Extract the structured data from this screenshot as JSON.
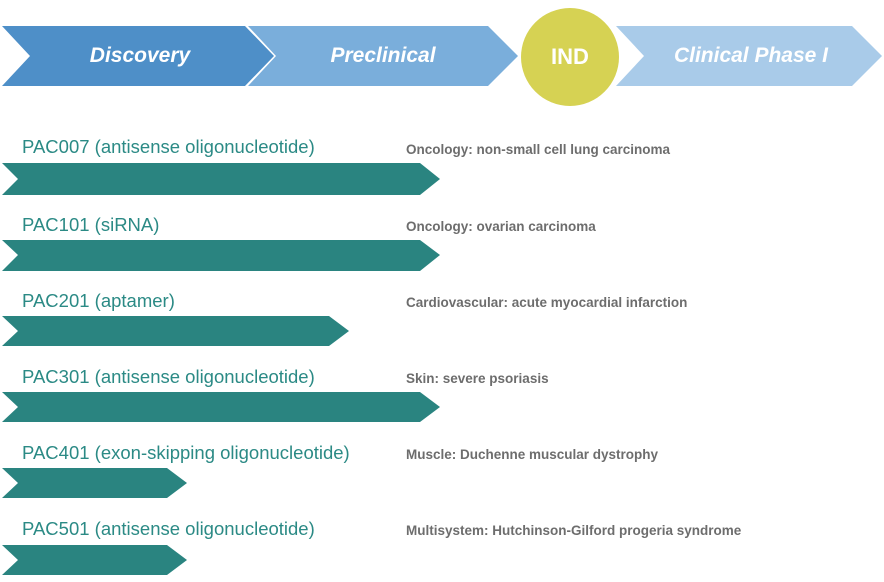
{
  "colors": {
    "phase_discovery": "#4e8fc8",
    "phase_preclinical": "#7aaedb",
    "phase_clinical": "#a9cbe9",
    "milestone": "#d6d253",
    "program_bar": "#2a8480",
    "program_text": "#2b8a85",
    "indication_text": "#6d6d6d"
  },
  "phases": [
    {
      "label": "Discovery"
    },
    {
      "label": "Preclinical"
    },
    {
      "label": "Clinical Phase I"
    }
  ],
  "milestone": {
    "label": "IND"
  },
  "programs": [
    {
      "name": "PAC007 (antisense oligonucleotide)",
      "indication": "Oncology: non-small cell lung carcinoma",
      "stage": "Preclinical (complete)"
    },
    {
      "name": "PAC101 (siRNA)",
      "indication": "Oncology: ovarian carcinoma",
      "stage": "Preclinical (complete)"
    },
    {
      "name": "PAC201 (aptamer)",
      "indication": "Cardiovascular: acute myocardial infarction",
      "stage": "Preclinical (partial)"
    },
    {
      "name": "PAC301 (antisense oligonucleotide)",
      "indication": "Skin: severe psoriasis",
      "stage": "Preclinical (complete)"
    },
    {
      "name": "PAC401 (exon-skipping oligonucleotide)",
      "indication": "Muscle: Duchenne muscular dystrophy",
      "stage": "Discovery"
    },
    {
      "name": "PAC501 (antisense oligonucleotide)",
      "indication": "Multisystem: Hutchinson-Gilford progeria syndrome",
      "stage": "Discovery"
    }
  ]
}
